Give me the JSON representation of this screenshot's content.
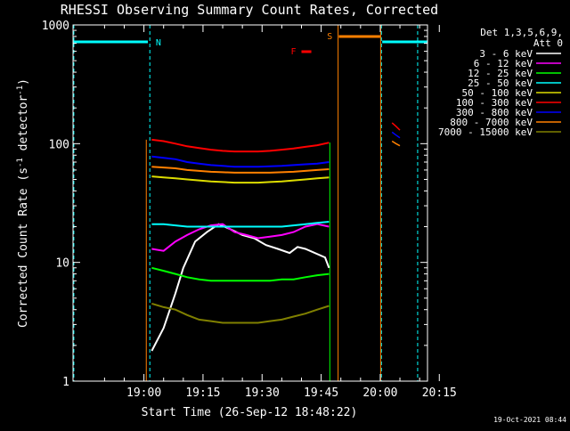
{
  "chart_data": {
    "type": "line",
    "title": "RHESSI Observing Summary Count Rates, Corrected",
    "xlabel": "Start Time (26-Sep-12 18:48:22)",
    "ylabel": "Corrected Count Rate (s",
    "ylabel_sup1": "-1",
    "ylabel_mid": " detector",
    "ylabel_sup2": "-1",
    "ylabel_end": ")",
    "y_scale": "log",
    "ylim": [
      1,
      1000
    ],
    "xlim_minutes_after_1848": [
      -6,
      84
    ],
    "x_ticks": [
      "19:00",
      "19:15",
      "19:30",
      "19:45",
      "20:00",
      "20:15"
    ],
    "y_ticks": [
      "1",
      "10",
      "100",
      "1000"
    ],
    "timestamp": "19-Oct-2021 08:44",
    "legend": {
      "header1": "Det 1,3,5,6,9,",
      "header2": "Att 0",
      "position": "right"
    },
    "series": [
      {
        "name": "3 - 6 keV",
        "color": "#ffffff",
        "data": [
          [
            14,
            1.8
          ],
          [
            17,
            2.8
          ],
          [
            20,
            5.5
          ],
          [
            22,
            9
          ],
          [
            25,
            15
          ],
          [
            28,
            18
          ],
          [
            31,
            21
          ],
          [
            34,
            19
          ],
          [
            37,
            17
          ],
          [
            40,
            16
          ],
          [
            43,
            14
          ],
          [
            46,
            13
          ],
          [
            49,
            12
          ],
          [
            51,
            13.5
          ],
          [
            53,
            13
          ],
          [
            58,
            11
          ],
          [
            59,
            9
          ]
        ]
      },
      {
        "name": "6 - 12 keV",
        "color": "#ff00ff",
        "data": [
          [
            14,
            13
          ],
          [
            17,
            12.5
          ],
          [
            20,
            15
          ],
          [
            23,
            17
          ],
          [
            26,
            19
          ],
          [
            29,
            20.5
          ],
          [
            32,
            21
          ],
          [
            35,
            18
          ],
          [
            38,
            17
          ],
          [
            41,
            16
          ],
          [
            44,
            16.5
          ],
          [
            47,
            17
          ],
          [
            50,
            18
          ],
          [
            53,
            20
          ],
          [
            56,
            21
          ],
          [
            59,
            20
          ]
        ]
      },
      {
        "name": "12 - 25 keV",
        "color": "#00ff00",
        "data": [
          [
            14,
            9
          ],
          [
            17,
            8.5
          ],
          [
            20,
            8
          ],
          [
            23,
            7.5
          ],
          [
            26,
            7.2
          ],
          [
            29,
            7
          ],
          [
            32,
            7
          ],
          [
            35,
            7
          ],
          [
            38,
            7
          ],
          [
            41,
            7
          ],
          [
            44,
            7
          ],
          [
            47,
            7.2
          ],
          [
            50,
            7.2
          ],
          [
            53,
            7.5
          ],
          [
            56,
            7.8
          ],
          [
            59,
            8
          ]
        ]
      },
      {
        "name": "25 - 50 keV",
        "color": "#00ffff",
        "data": [
          [
            14,
            21
          ],
          [
            17,
            21
          ],
          [
            20,
            20.5
          ],
          [
            23,
            20
          ],
          [
            26,
            20
          ],
          [
            29,
            20
          ],
          [
            32,
            20
          ],
          [
            35,
            20
          ],
          [
            38,
            20
          ],
          [
            41,
            20
          ],
          [
            44,
            20
          ],
          [
            47,
            20
          ],
          [
            50,
            20.5
          ],
          [
            53,
            21
          ],
          [
            56,
            21.5
          ],
          [
            59,
            22
          ]
        ]
      },
      {
        "name": "50 - 100 keV",
        "color": "#dddd00",
        "data": [
          [
            14,
            53
          ],
          [
            17,
            52
          ],
          [
            20,
            51
          ],
          [
            23,
            50
          ],
          [
            26,
            49
          ],
          [
            29,
            48
          ],
          [
            32,
            47.5
          ],
          [
            35,
            47
          ],
          [
            38,
            47
          ],
          [
            41,
            47
          ],
          [
            44,
            47.5
          ],
          [
            47,
            48
          ],
          [
            50,
            49
          ],
          [
            53,
            50
          ],
          [
            56,
            51
          ],
          [
            59,
            52
          ]
        ]
      },
      {
        "name": "100 - 300 keV",
        "color": "#ff0000",
        "data": [
          [
            14,
            108
          ],
          [
            17,
            105
          ],
          [
            20,
            100
          ],
          [
            23,
            95
          ],
          [
            26,
            92
          ],
          [
            29,
            89
          ],
          [
            32,
            87
          ],
          [
            35,
            86
          ],
          [
            38,
            86
          ],
          [
            41,
            86
          ],
          [
            44,
            87
          ],
          [
            47,
            89
          ],
          [
            50,
            91
          ],
          [
            53,
            94
          ],
          [
            56,
            97
          ],
          [
            59,
            102
          ],
          [
            75,
            150
          ],
          [
            76,
            140
          ],
          [
            77,
            130
          ]
        ]
      },
      {
        "name": "300 - 800 keV",
        "color": "#0000ff",
        "data": [
          [
            14,
            78
          ],
          [
            17,
            76
          ],
          [
            20,
            74
          ],
          [
            23,
            70
          ],
          [
            26,
            68
          ],
          [
            29,
            66
          ],
          [
            32,
            65
          ],
          [
            35,
            64
          ],
          [
            38,
            64
          ],
          [
            41,
            64
          ],
          [
            44,
            64.5
          ],
          [
            47,
            65
          ],
          [
            50,
            66
          ],
          [
            53,
            67
          ],
          [
            56,
            68
          ],
          [
            59,
            70
          ],
          [
            75,
            125
          ],
          [
            76,
            118
          ],
          [
            77,
            112
          ]
        ]
      },
      {
        "name": "800 - 7000 keV",
        "color": "#ff8000",
        "data": [
          [
            14,
            64
          ],
          [
            17,
            63
          ],
          [
            20,
            62
          ],
          [
            23,
            60
          ],
          [
            26,
            59
          ],
          [
            29,
            58
          ],
          [
            32,
            57.5
          ],
          [
            35,
            57
          ],
          [
            38,
            57
          ],
          [
            41,
            57
          ],
          [
            44,
            57
          ],
          [
            47,
            57.5
          ],
          [
            50,
            58
          ],
          [
            53,
            59
          ],
          [
            56,
            60
          ],
          [
            59,
            61
          ],
          [
            75,
            105
          ],
          [
            76,
            100
          ],
          [
            77,
            96
          ]
        ]
      },
      {
        "name": "7000 - 15000 keV",
        "color": "#808000",
        "data": [
          [
            14,
            4.5
          ],
          [
            17,
            4.2
          ],
          [
            20,
            4
          ],
          [
            23,
            3.6
          ],
          [
            26,
            3.3
          ],
          [
            29,
            3.2
          ],
          [
            32,
            3.1
          ],
          [
            35,
            3.1
          ],
          [
            38,
            3.1
          ],
          [
            41,
            3.1
          ],
          [
            44,
            3.2
          ],
          [
            47,
            3.3
          ],
          [
            50,
            3.5
          ],
          [
            53,
            3.7
          ],
          [
            56,
            4
          ],
          [
            59,
            4.3
          ]
        ]
      }
    ],
    "flags": {
      "night_label": "N",
      "saa_label": "S",
      "flare_label": "F"
    }
  }
}
